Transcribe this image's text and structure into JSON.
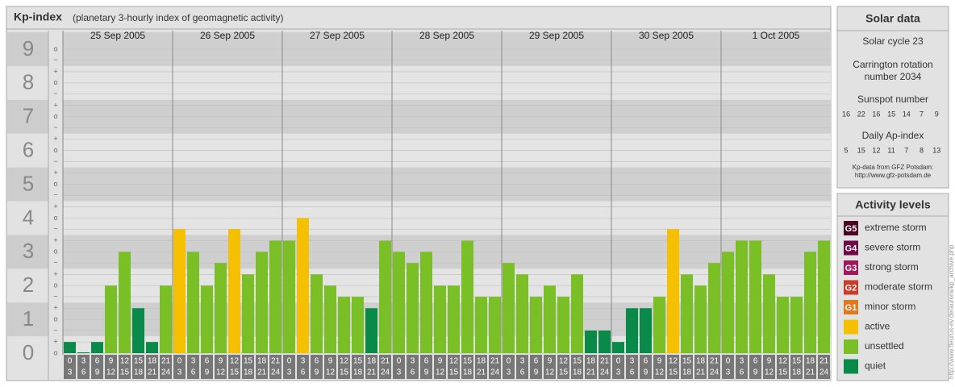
{
  "chart_data": {
    "type": "bar",
    "title": "Kp-index",
    "subtitle": "(planetary 3-hourly index of geomagnetic activity)",
    "categories": [
      "25 Sep 2005",
      "26 Sep 2005",
      "27 Sep 2005",
      "28 Sep 2005",
      "29 Sep 2005",
      "30 Sep 2005",
      "1 Oct 2005"
    ],
    "hours": [
      "0",
      "3",
      "6",
      "9",
      "12",
      "15",
      "18",
      "21",
      "24"
    ],
    "values": [
      [
        0.33,
        0,
        0.33,
        2,
        3,
        1.33,
        0.33,
        2
      ],
      [
        3.67,
        3,
        2,
        2.67,
        3.67,
        2.33,
        3,
        3.33
      ],
      [
        3.33,
        4,
        2.33,
        2,
        1.67,
        1.67,
        1.33,
        3.33
      ],
      [
        3,
        2.67,
        3,
        2,
        2,
        3.33,
        1.67,
        1.67
      ],
      [
        2.67,
        2.33,
        1.67,
        2,
        1.67,
        2.33,
        0.67,
        0.67
      ],
      [
        0.33,
        1.33,
        1.33,
        1.67,
        3.67,
        2.33,
        2,
        2.67
      ],
      [
        3,
        3.33,
        3.33,
        2.33,
        1.67,
        1.67,
        3,
        3.33
      ]
    ],
    "colors": [
      [
        "#0a8a48",
        "#0a8a48",
        "#0a8a48",
        "#7abf26",
        "#7abf26",
        "#0a8a48",
        "#0a8a48",
        "#7abf26"
      ],
      [
        "#f5c000",
        "#7abf26",
        "#7abf26",
        "#7abf26",
        "#f5c000",
        "#7abf26",
        "#7abf26",
        "#7abf26"
      ],
      [
        "#7abf26",
        "#f5c000",
        "#7abf26",
        "#7abf26",
        "#7abf26",
        "#7abf26",
        "#0a8a48",
        "#7abf26"
      ],
      [
        "#7abf26",
        "#7abf26",
        "#7abf26",
        "#7abf26",
        "#7abf26",
        "#7abf26",
        "#7abf26",
        "#7abf26"
      ],
      [
        "#7abf26",
        "#7abf26",
        "#7abf26",
        "#7abf26",
        "#7abf26",
        "#7abf26",
        "#0a8a48",
        "#0a8a48"
      ],
      [
        "#0a8a48",
        "#0a8a48",
        "#0a8a48",
        "#7abf26",
        "#f5c000",
        "#7abf26",
        "#7abf26",
        "#7abf26"
      ],
      [
        "#7abf26",
        "#7abf26",
        "#7abf26",
        "#7abf26",
        "#7abf26",
        "#7abf26",
        "#7abf26",
        "#7abf26"
      ]
    ],
    "ylim": [
      0,
      9.5
    ],
    "yticks": [
      0,
      1,
      2,
      3,
      4,
      5,
      6,
      7,
      8,
      9
    ],
    "minor_ticks": [
      {
        "value": 0,
        "label": "o"
      },
      {
        "value": 0.33,
        "label": "+"
      },
      {
        "value": 0.67,
        "label": "−"
      },
      {
        "value": 1,
        "label": "o"
      },
      {
        "value": 1.33,
        "label": "+"
      },
      {
        "value": 1.67,
        "label": "−"
      },
      {
        "value": 2,
        "label": "o"
      },
      {
        "value": 2.33,
        "label": "+"
      },
      {
        "value": 2.67,
        "label": "−"
      },
      {
        "value": 3,
        "label": "o"
      },
      {
        "value": 3.33,
        "label": "+"
      },
      {
        "value": 3.67,
        "label": "−"
      },
      {
        "value": 4,
        "label": "o"
      },
      {
        "value": 4.33,
        "label": "+"
      },
      {
        "value": 4.67,
        "label": "−"
      },
      {
        "value": 5,
        "label": "o"
      },
      {
        "value": 5.33,
        "label": "+"
      },
      {
        "value": 5.67,
        "label": "−"
      },
      {
        "value": 6,
        "label": "o"
      },
      {
        "value": 6.33,
        "label": "+"
      },
      {
        "value": 6.67,
        "label": "−"
      },
      {
        "value": 7,
        "label": "o"
      },
      {
        "value": 7.33,
        "label": "+"
      },
      {
        "value": 7.67,
        "label": "−"
      },
      {
        "value": 8,
        "label": "o"
      },
      {
        "value": 8.33,
        "label": "+"
      },
      {
        "value": 8.67,
        "label": "−"
      },
      {
        "value": 9,
        "label": "o"
      }
    ],
    "grid": true
  },
  "solar_data": {
    "title": "Solar data",
    "cycle": "Solar cycle 23",
    "carrington": [
      "Carrington rotation",
      "number 2034"
    ],
    "sunspot_title": "Sunspot number",
    "sunspot_numbers": [
      16,
      22,
      16,
      15,
      14,
      7,
      9
    ],
    "ap_title": "Daily Ap-index",
    "ap_values": [
      5,
      15,
      12,
      11,
      7,
      8,
      13
    ],
    "source": [
      "Kp-data from GFZ Potsdam:",
      "http://www.gfz-potsdam.de"
    ]
  },
  "activity_levels": {
    "title": "Activity levels",
    "items": [
      {
        "badge": "G5",
        "label": "extreme storm",
        "color": "#4b0024"
      },
      {
        "badge": "G4",
        "label": "severe storm",
        "color": "#6e0a46"
      },
      {
        "badge": "G3",
        "label": "strong storm",
        "color": "#a3185c"
      },
      {
        "badge": "G2",
        "label": "moderate storm",
        "color": "#cc3b2a"
      },
      {
        "badge": "G1",
        "label": "minor storm",
        "color": "#e0781e"
      },
      {
        "label": "active",
        "color": "#f5c000"
      },
      {
        "label": "unsettled",
        "color": "#7abf26"
      },
      {
        "label": "quiet",
        "color": "#0a8a48"
      }
    ]
  },
  "credit": "http://www.fleurus-ev.de/aurora/kp_archive.php"
}
